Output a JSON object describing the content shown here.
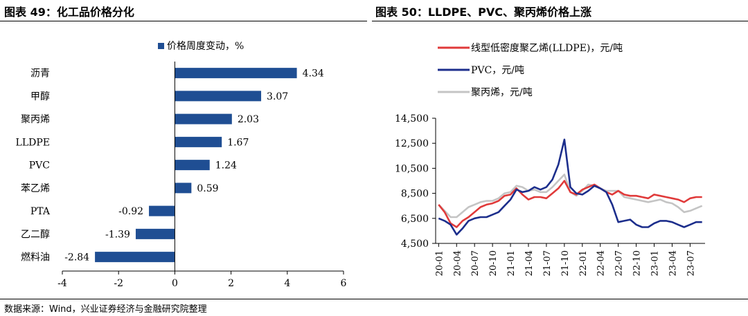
{
  "titles": {
    "left": "图表 49：化工品价格分化",
    "right": "图表 50：LLDPE、PVC、聚丙烯价格上涨"
  },
  "source": "数据来源：Wind，兴业证券经济与金融研究院整理",
  "colors": {
    "bar": "#1F4E93",
    "lldpe": "#E03A3A",
    "pvc": "#1C2E8C",
    "pp": "#C4C4C4"
  },
  "chart_data": [
    {
      "type": "bar",
      "orientation": "horizontal",
      "categories": [
        "沥青",
        "甲醇",
        "聚丙烯",
        "LLDPE",
        "PVC",
        "苯乙烯",
        "PTA",
        "乙二醇",
        "燃料油"
      ],
      "series": [
        {
          "name": "价格周度变动，%",
          "values": [
            4.34,
            3.07,
            2.03,
            1.67,
            1.24,
            0.59,
            -0.92,
            -1.39,
            -2.84
          ]
        }
      ],
      "data_labels": [
        "4.34",
        "3.07",
        "2.03",
        "1.67",
        "1.24",
        "0.59",
        "-0.92",
        "-1.39",
        "-2.84"
      ],
      "xlim": [
        -4,
        6
      ],
      "xticks": [
        "-4",
        "-2",
        "0",
        "2",
        "4",
        "6"
      ],
      "legend": "top",
      "grid": false
    },
    {
      "type": "line",
      "x": [
        "20-01",
        "20-02",
        "20-03",
        "20-04",
        "20-05",
        "20-06",
        "20-07",
        "20-08",
        "20-09",
        "20-10",
        "20-11",
        "20-12",
        "21-01",
        "21-02",
        "21-03",
        "21-04",
        "21-05",
        "21-06",
        "21-07",
        "21-08",
        "21-09",
        "21-10",
        "21-11",
        "21-12",
        "22-01",
        "22-02",
        "22-03",
        "22-04",
        "22-05",
        "22-06",
        "22-07",
        "22-08",
        "22-09",
        "22-10",
        "22-11",
        "22-12",
        "23-01",
        "23-02",
        "23-03",
        "23-04",
        "23-05",
        "23-06",
        "23-07",
        "23-08",
        "23-09"
      ],
      "xticks": [
        "20-01",
        "20-04",
        "20-07",
        "20-10",
        "21-01",
        "21-04",
        "21-07",
        "21-10",
        "22-01",
        "22-04",
        "22-07",
        "22-10",
        "23-01",
        "23-04",
        "23-07"
      ],
      "series": [
        {
          "name": "线型低密度聚乙烯(LLDPE)，元/吨",
          "values": [
            7600,
            7000,
            6100,
            5800,
            6300,
            6600,
            7000,
            7400,
            7600,
            7700,
            7900,
            8300,
            8400,
            8900,
            8400,
            8000,
            8200,
            8200,
            8100,
            8500,
            8900,
            9500,
            8600,
            8400,
            8800,
            9000,
            9200,
            8900,
            8600,
            8400,
            8700,
            8400,
            8300,
            8300,
            8200,
            8100,
            8400,
            8300,
            8200,
            8100,
            8000,
            7800,
            8100,
            8200,
            8200
          ]
        },
        {
          "name": "PVC，元/吨",
          "values": [
            6500,
            6300,
            6000,
            5200,
            5700,
            6300,
            6500,
            6600,
            6600,
            6800,
            7000,
            7500,
            8000,
            8800,
            8600,
            8700,
            9000,
            8800,
            9000,
            9600,
            10800,
            12800,
            9000,
            8500,
            8400,
            8700,
            9100,
            8900,
            8600,
            7600,
            6200,
            6300,
            6400,
            6000,
            5800,
            5800,
            6100,
            6300,
            6300,
            6200,
            6000,
            5800,
            6000,
            6200,
            6200
          ]
        },
        {
          "name": "聚丙烯，元/吨",
          "values": [
            7600,
            7100,
            6600,
            6600,
            7000,
            7400,
            7600,
            7800,
            7900,
            7900,
            8100,
            8500,
            8600,
            9100,
            9000,
            8700,
            8800,
            8600,
            8600,
            9000,
            9500,
            10000,
            8600,
            8300,
            8700,
            9200,
            9100,
            8900,
            8700,
            8700,
            8700,
            8200,
            8100,
            8000,
            7900,
            7800,
            7900,
            8000,
            7800,
            7700,
            7400,
            7000,
            7100,
            7300,
            7500
          ]
        }
      ],
      "ylim": [
        4500,
        14500
      ],
      "yticks": [
        "4,500",
        "6,500",
        "8,500",
        "10,500",
        "12,500",
        "14,500"
      ],
      "legend": "top-left",
      "grid": false
    }
  ]
}
